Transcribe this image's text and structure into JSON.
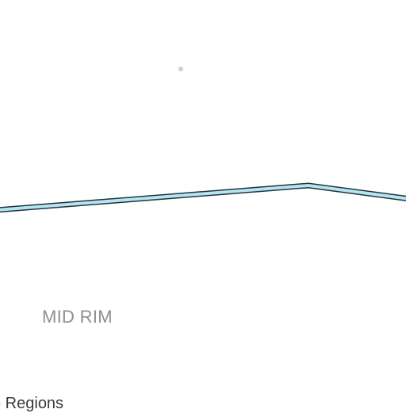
{
  "map": {
    "region_label": "MID RIM",
    "bottom_label": "e Regions",
    "colors": {
      "background": "#ffffff",
      "route_fill": "#b8e4f2",
      "route_outline": "#1f3340",
      "marker": "#c5d3dd",
      "region_text": "#8e8e8e",
      "bottom_text": "#3a3a3a"
    }
  }
}
